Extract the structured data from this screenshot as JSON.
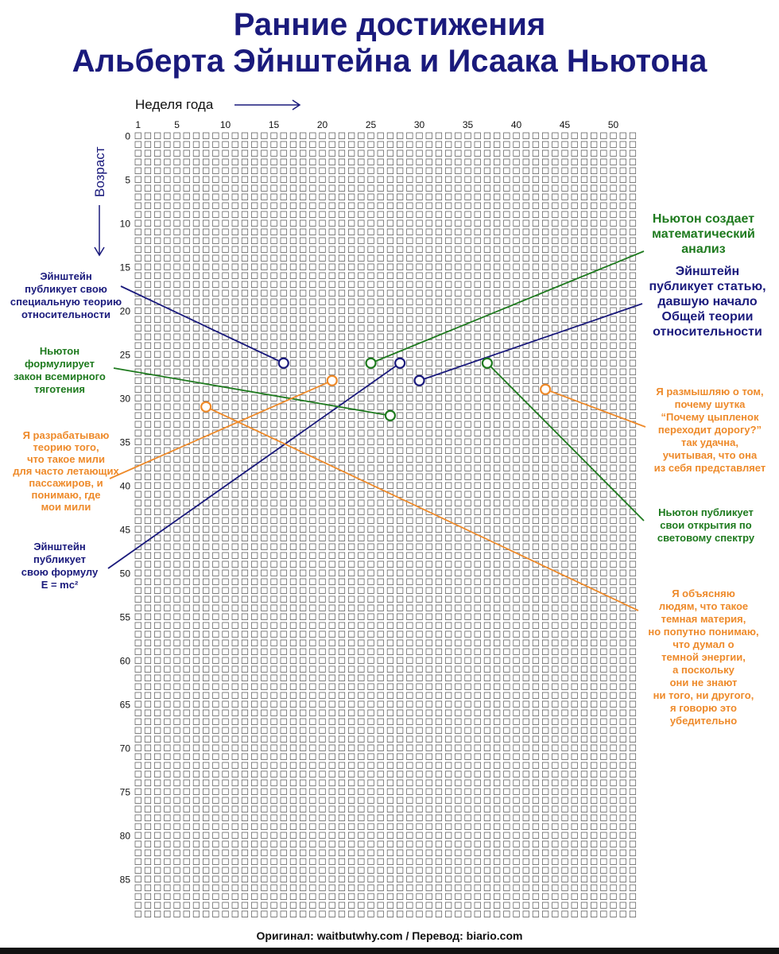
{
  "title": {
    "line1": "Ранние достижения",
    "line2": "Альберта Эйнштейна и Исаака Ньютона"
  },
  "footer": "Оригинал: waitbutwhy.com  /  Перевод: biario.com",
  "colors": {
    "navy": "#1a1a7c",
    "green": "#1e7a1e",
    "orange": "#ee8a2a",
    "grid": "#555555"
  },
  "chart_data": {
    "type": "scatter",
    "title": "Ранние достижения Альберта Эйнштейна и Исаака Ньютона",
    "xlabel": "Неделя года",
    "ylabel": "Возраст",
    "x_range": [
      1,
      52
    ],
    "y_range": [
      0,
      90
    ],
    "x_ticks": [
      1,
      5,
      10,
      15,
      20,
      25,
      30,
      35,
      40,
      45,
      50
    ],
    "y_ticks": [
      0,
      5,
      10,
      15,
      20,
      25,
      30,
      35,
      40,
      45,
      50,
      55,
      60,
      65,
      70,
      75,
      80,
      85
    ],
    "grid": "one square per week of life",
    "points": [
      {
        "id": "einstein-special-relativity",
        "week": 16,
        "age": 26,
        "color": "navy",
        "label": "Эйнштейн публикует свою специальную теорию относительности"
      },
      {
        "id": "newton-calculus",
        "week": 25,
        "age": 26,
        "color": "green",
        "label": "Ньютон создает математический анализ"
      },
      {
        "id": "einstein-emc2",
        "week": 28,
        "age": 26,
        "color": "navy",
        "label": "Эйнштейн публикует свою формулу E = mc²"
      },
      {
        "id": "einstein-general-relativity",
        "week": 30,
        "age": 28,
        "color": "navy",
        "label": "Эйнштейн публикует статью, давшую начало Общей теории относительности"
      },
      {
        "id": "newton-optics",
        "week": 37,
        "age": 26,
        "color": "green",
        "label": "Ньютон публикует свои открытия по световому спектру"
      },
      {
        "id": "newton-gravitation",
        "week": 27,
        "age": 32,
        "color": "green",
        "label": "Ньютон формулирует закон всемирного тяготения"
      },
      {
        "id": "author-miles",
        "week": 21,
        "age": 28,
        "color": "orange",
        "label": "Я разрабатываю теорию того, что такое мили для часто летающих пассажиров, и понимаю, где мои мили"
      },
      {
        "id": "author-dark-matter",
        "week": 8,
        "age": 31,
        "color": "orange",
        "label": "Я объясняю людям, что такое темная материя, но попутно понимаю, что думал о темной энергии, а поскольку они не знают ни того, ни другого, я говорю это убедительно"
      },
      {
        "id": "author-chicken-joke",
        "week": 43,
        "age": 29,
        "color": "orange",
        "label": "Я размышляю о том, почему шутка “Почему цыпленок переходит дорогу?” так удачна, учитывая, что она из себя представляет"
      }
    ]
  },
  "annotations": [
    {
      "id": "einstein-special-relativity",
      "color": "navy",
      "lines": [
        "Эйнштейн",
        "публикует свою",
        "специальную теорию",
        "относительности"
      ]
    },
    {
      "id": "newton-gravitation",
      "color": "green",
      "lines": [
        "Ньютон",
        "формулирует",
        "закон всемирного",
        "тяготения"
      ]
    },
    {
      "id": "author-miles",
      "color": "orange",
      "lines": [
        "Я разрабатываю",
        "теорию того,",
        "что такое мили",
        "для часто летающих",
        "пассажиров, и",
        "понимаю, где",
        "мои мили"
      ]
    },
    {
      "id": "einstein-emc2",
      "color": "navy",
      "lines": [
        "Эйнштейн",
        "публикует",
        "свою формулу",
        "E = mc²"
      ]
    },
    {
      "id": "newton-calculus",
      "color": "green",
      "lines": [
        "Ньютон создает",
        "математический",
        "анализ"
      ]
    },
    {
      "id": "einstein-general-relativity",
      "color": "navy",
      "lines": [
        "Эйнштейн",
        "публикует статью,",
        "давшую начало",
        "Общей теории",
        "относительности"
      ]
    },
    {
      "id": "author-chicken-joke",
      "color": "orange",
      "lines": [
        "Я размышляю о том,",
        "почему шутка",
        "“Почему цыпленок",
        "переходит дорогу?”",
        "так удачна,",
        "учитывая, что она",
        "из себя представляет"
      ]
    },
    {
      "id": "newton-optics",
      "color": "green",
      "lines": [
        "Ньютон публикует",
        "свои открытия по",
        "световому спектру"
      ]
    },
    {
      "id": "author-dark-matter",
      "color": "orange",
      "lines": [
        "Я объясняю",
        "людям, что такое",
        "темная материя,",
        "но попутно понимаю,",
        "что думал о",
        "темной энергии,",
        "а поскольку",
        "они не знают",
        "ни того, ни другого,",
        "я говорю это",
        "убедительно"
      ]
    }
  ]
}
